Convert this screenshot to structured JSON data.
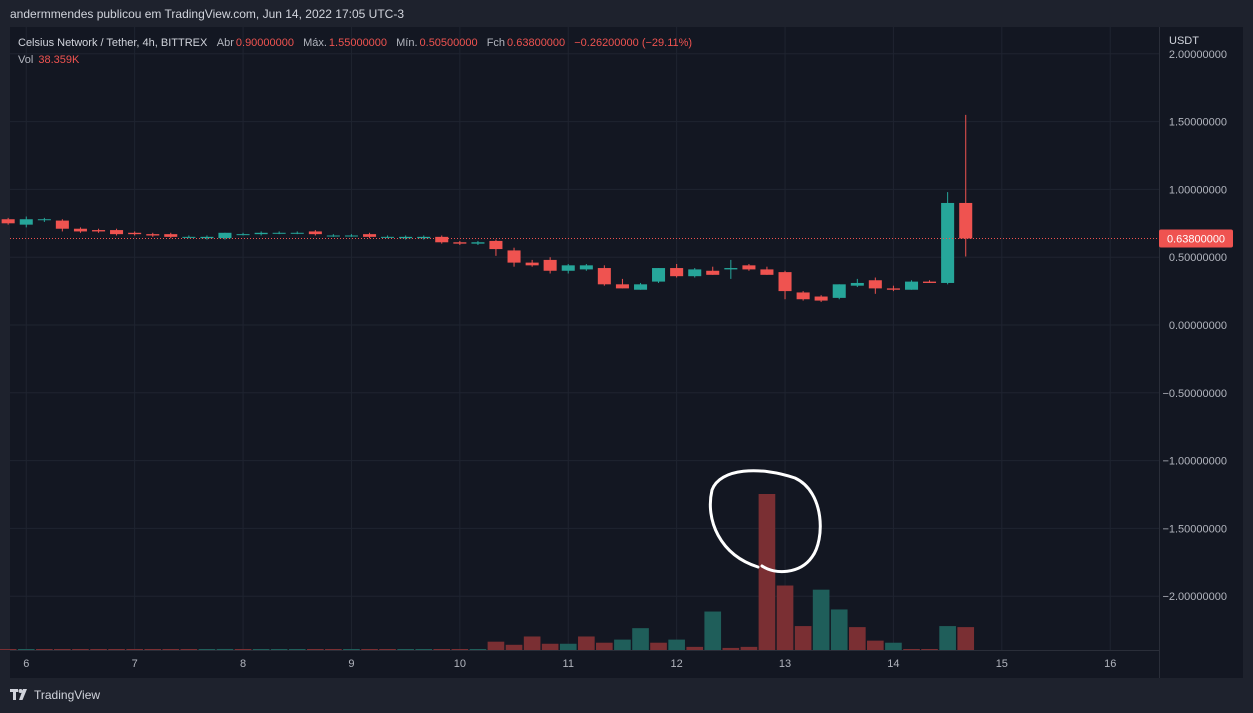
{
  "header": {
    "published_text": "andermmendes publicou em TradingView.com, Jun 14, 2022 17:05 UTC-3"
  },
  "legend": {
    "symbol": "Celsius Network / Tether, 4h, BITTREX",
    "open_label": "Abr",
    "open_value": "0.90000000",
    "high_label": "Máx.",
    "high_value": "1.55000000",
    "low_label": "Mín.",
    "low_value": "0.50500000",
    "close_label": "Fch",
    "close_value": "0.63800000",
    "change_value": "−0.26200000 (−29.11%)",
    "volume_label": "Vol",
    "volume_value": "38.359K"
  },
  "footer": {
    "brand": "TradingView"
  },
  "colors": {
    "background": "#131722",
    "up": "#26a69a",
    "down": "#ef5350",
    "volume_up": "#1f5e5a",
    "volume_down": "#7a2f33",
    "grid": "#1f2430",
    "annotation": "#ffffff"
  },
  "chart_data": {
    "type": "candlestick",
    "currency_label": "USDT",
    "y_tick_labels": [
      "2.00000000",
      "1.50000000",
      "1.00000000",
      "0.50000000",
      "0.00000000",
      "−0.50000000",
      "−1.00000000",
      "−1.50000000",
      "−2.00000000"
    ],
    "ylim": [
      -2.4,
      2.05
    ],
    "x_tick_labels": [
      "6",
      "7",
      "8",
      "9",
      "10",
      "11",
      "12",
      "13",
      "14",
      "15",
      "16"
    ],
    "xlim": [
      5.85,
      16.45
    ],
    "last_price": 0.638,
    "last_price_label": "0.63800000",
    "grid": true,
    "volume_max": 150,
    "candles": [
      {
        "t": 5.833,
        "o": 0.78,
        "h": 0.79,
        "l": 0.74,
        "c": 0.75
      },
      {
        "t": 6.0,
        "o": 0.74,
        "h": 0.8,
        "l": 0.72,
        "c": 0.78
      },
      {
        "t": 6.167,
        "o": 0.78,
        "h": 0.79,
        "l": 0.76,
        "c": 0.78
      },
      {
        "t": 6.333,
        "o": 0.77,
        "h": 0.78,
        "l": 0.69,
        "c": 0.71
      },
      {
        "t": 6.5,
        "o": 0.71,
        "h": 0.72,
        "l": 0.68,
        "c": 0.69
      },
      {
        "t": 6.667,
        "o": 0.7,
        "h": 0.71,
        "l": 0.68,
        "c": 0.69
      },
      {
        "t": 6.833,
        "o": 0.7,
        "h": 0.71,
        "l": 0.66,
        "c": 0.67
      },
      {
        "t": 7.0,
        "o": 0.68,
        "h": 0.69,
        "l": 0.66,
        "c": 0.67
      },
      {
        "t": 7.167,
        "o": 0.67,
        "h": 0.68,
        "l": 0.65,
        "c": 0.66
      },
      {
        "t": 7.333,
        "o": 0.67,
        "h": 0.68,
        "l": 0.64,
        "c": 0.65
      },
      {
        "t": 7.5,
        "o": 0.65,
        "h": 0.66,
        "l": 0.64,
        "c": 0.65
      },
      {
        "t": 7.667,
        "o": 0.64,
        "h": 0.66,
        "l": 0.63,
        "c": 0.65
      },
      {
        "t": 7.833,
        "o": 0.64,
        "h": 0.68,
        "l": 0.63,
        "c": 0.68
      },
      {
        "t": 8.0,
        "o": 0.67,
        "h": 0.68,
        "l": 0.66,
        "c": 0.67
      },
      {
        "t": 8.167,
        "o": 0.67,
        "h": 0.69,
        "l": 0.66,
        "c": 0.68
      },
      {
        "t": 8.333,
        "o": 0.68,
        "h": 0.69,
        "l": 0.67,
        "c": 0.68
      },
      {
        "t": 8.5,
        "o": 0.68,
        "h": 0.69,
        "l": 0.67,
        "c": 0.68
      },
      {
        "t": 8.667,
        "o": 0.69,
        "h": 0.7,
        "l": 0.66,
        "c": 0.67
      },
      {
        "t": 8.833,
        "o": 0.66,
        "h": 0.67,
        "l": 0.65,
        "c": 0.66
      },
      {
        "t": 9.0,
        "o": 0.66,
        "h": 0.67,
        "l": 0.65,
        "c": 0.66
      },
      {
        "t": 9.167,
        "o": 0.67,
        "h": 0.68,
        "l": 0.64,
        "c": 0.65
      },
      {
        "t": 9.333,
        "o": 0.65,
        "h": 0.66,
        "l": 0.64,
        "c": 0.65
      },
      {
        "t": 9.5,
        "o": 0.64,
        "h": 0.66,
        "l": 0.63,
        "c": 0.65
      },
      {
        "t": 9.667,
        "o": 0.64,
        "h": 0.66,
        "l": 0.63,
        "c": 0.65
      },
      {
        "t": 9.833,
        "o": 0.65,
        "h": 0.66,
        "l": 0.6,
        "c": 0.61
      },
      {
        "t": 10.0,
        "o": 0.61,
        "h": 0.62,
        "l": 0.59,
        "c": 0.6
      },
      {
        "t": 10.167,
        "o": 0.6,
        "h": 0.62,
        "l": 0.59,
        "c": 0.61
      },
      {
        "t": 10.333,
        "o": 0.62,
        "h": 0.63,
        "l": 0.51,
        "c": 0.56
      },
      {
        "t": 10.5,
        "o": 0.55,
        "h": 0.57,
        "l": 0.43,
        "c": 0.46
      },
      {
        "t": 10.667,
        "o": 0.46,
        "h": 0.48,
        "l": 0.43,
        "c": 0.44
      },
      {
        "t": 10.833,
        "o": 0.48,
        "h": 0.5,
        "l": 0.38,
        "c": 0.4
      },
      {
        "t": 11.0,
        "o": 0.4,
        "h": 0.45,
        "l": 0.38,
        "c": 0.44
      },
      {
        "t": 11.167,
        "o": 0.41,
        "h": 0.45,
        "l": 0.4,
        "c": 0.44
      },
      {
        "t": 11.333,
        "o": 0.42,
        "h": 0.44,
        "l": 0.29,
        "c": 0.3
      },
      {
        "t": 11.5,
        "o": 0.3,
        "h": 0.34,
        "l": 0.27,
        "c": 0.27
      },
      {
        "t": 11.667,
        "o": 0.26,
        "h": 0.31,
        "l": 0.26,
        "c": 0.3
      },
      {
        "t": 11.833,
        "o": 0.32,
        "h": 0.42,
        "l": 0.31,
        "c": 0.42
      },
      {
        "t": 12.0,
        "o": 0.42,
        "h": 0.45,
        "l": 0.35,
        "c": 0.36
      },
      {
        "t": 12.167,
        "o": 0.36,
        "h": 0.42,
        "l": 0.35,
        "c": 0.41
      },
      {
        "t": 12.333,
        "o": 0.4,
        "h": 0.43,
        "l": 0.37,
        "c": 0.37
      },
      {
        "t": 12.5,
        "o": 0.41,
        "h": 0.48,
        "l": 0.34,
        "c": 0.42
      },
      {
        "t": 12.667,
        "o": 0.44,
        "h": 0.45,
        "l": 0.4,
        "c": 0.41
      },
      {
        "t": 12.833,
        "o": 0.41,
        "h": 0.43,
        "l": 0.37,
        "c": 0.37
      },
      {
        "t": 13.0,
        "o": 0.39,
        "h": 0.4,
        "l": 0.19,
        "c": 0.25
      },
      {
        "t": 13.167,
        "o": 0.24,
        "h": 0.25,
        "l": 0.18,
        "c": 0.19
      },
      {
        "t": 13.333,
        "o": 0.21,
        "h": 0.22,
        "l": 0.17,
        "c": 0.18
      },
      {
        "t": 13.5,
        "o": 0.2,
        "h": 0.3,
        "l": 0.19,
        "c": 0.3
      },
      {
        "t": 13.667,
        "o": 0.29,
        "h": 0.34,
        "l": 0.28,
        "c": 0.31
      },
      {
        "t": 13.833,
        "o": 0.33,
        "h": 0.35,
        "l": 0.23,
        "c": 0.27
      },
      {
        "t": 14.0,
        "o": 0.27,
        "h": 0.29,
        "l": 0.25,
        "c": 0.26
      },
      {
        "t": 14.167,
        "o": 0.26,
        "h": 0.33,
        "l": 0.26,
        "c": 0.32
      },
      {
        "t": 14.333,
        "o": 0.32,
        "h": 0.33,
        "l": 0.31,
        "c": 0.31
      },
      {
        "t": 14.5,
        "o": 0.31,
        "h": 0.98,
        "l": 0.3,
        "c": 0.9
      },
      {
        "t": 14.667,
        "o": 0.9,
        "h": 1.55,
        "l": 0.505,
        "c": 0.638
      }
    ],
    "volumes": [
      {
        "t": 5.833,
        "v": 0.5,
        "dir": "down"
      },
      {
        "t": 6.0,
        "v": 0.5,
        "dir": "up"
      },
      {
        "t": 6.167,
        "v": 0.5,
        "dir": "down"
      },
      {
        "t": 6.333,
        "v": 0.5,
        "dir": "down"
      },
      {
        "t": 6.5,
        "v": 0.5,
        "dir": "down"
      },
      {
        "t": 6.667,
        "v": 0.5,
        "dir": "down"
      },
      {
        "t": 6.833,
        "v": 0.5,
        "dir": "down"
      },
      {
        "t": 7.0,
        "v": 0.5,
        "dir": "down"
      },
      {
        "t": 7.167,
        "v": 0.5,
        "dir": "down"
      },
      {
        "t": 7.333,
        "v": 0.5,
        "dir": "down"
      },
      {
        "t": 7.5,
        "v": 0.5,
        "dir": "down"
      },
      {
        "t": 7.667,
        "v": 0.5,
        "dir": "up"
      },
      {
        "t": 7.833,
        "v": 1,
        "dir": "up"
      },
      {
        "t": 8.0,
        "v": 0.5,
        "dir": "down"
      },
      {
        "t": 8.167,
        "v": 0.5,
        "dir": "up"
      },
      {
        "t": 8.333,
        "v": 0.5,
        "dir": "up"
      },
      {
        "t": 8.5,
        "v": 0.5,
        "dir": "up"
      },
      {
        "t": 8.667,
        "v": 0.5,
        "dir": "down"
      },
      {
        "t": 8.833,
        "v": 0.5,
        "dir": "down"
      },
      {
        "t": 9.0,
        "v": 0.5,
        "dir": "up"
      },
      {
        "t": 9.167,
        "v": 0.5,
        "dir": "down"
      },
      {
        "t": 9.333,
        "v": 0.5,
        "dir": "down"
      },
      {
        "t": 9.5,
        "v": 0.5,
        "dir": "up"
      },
      {
        "t": 9.667,
        "v": 0.5,
        "dir": "up"
      },
      {
        "t": 9.833,
        "v": 0.5,
        "dir": "down"
      },
      {
        "t": 10.0,
        "v": 0.5,
        "dir": "down"
      },
      {
        "t": 10.167,
        "v": 0.5,
        "dir": "up"
      },
      {
        "t": 10.333,
        "v": 8,
        "dir": "down"
      },
      {
        "t": 10.5,
        "v": 5,
        "dir": "down"
      },
      {
        "t": 10.667,
        "v": 13,
        "dir": "down"
      },
      {
        "t": 10.833,
        "v": 6,
        "dir": "down"
      },
      {
        "t": 11.0,
        "v": 6,
        "dir": "up"
      },
      {
        "t": 11.167,
        "v": 13,
        "dir": "down"
      },
      {
        "t": 11.333,
        "v": 7,
        "dir": "down"
      },
      {
        "t": 11.5,
        "v": 10,
        "dir": "up"
      },
      {
        "t": 11.667,
        "v": 21,
        "dir": "up"
      },
      {
        "t": 11.833,
        "v": 7,
        "dir": "down"
      },
      {
        "t": 12.0,
        "v": 10,
        "dir": "up"
      },
      {
        "t": 12.167,
        "v": 3,
        "dir": "down"
      },
      {
        "t": 12.333,
        "v": 37,
        "dir": "up"
      },
      {
        "t": 12.5,
        "v": 2,
        "dir": "down"
      },
      {
        "t": 12.667,
        "v": 3,
        "dir": "down"
      },
      {
        "t": 12.833,
        "v": 150,
        "dir": "down"
      },
      {
        "t": 13.0,
        "v": 62,
        "dir": "down"
      },
      {
        "t": 13.167,
        "v": 23,
        "dir": "down"
      },
      {
        "t": 13.333,
        "v": 58,
        "dir": "up"
      },
      {
        "t": 13.5,
        "v": 39,
        "dir": "up"
      },
      {
        "t": 13.667,
        "v": 22,
        "dir": "down"
      },
      {
        "t": 13.833,
        "v": 9,
        "dir": "down"
      },
      {
        "t": 14.0,
        "v": 7,
        "dir": "up"
      },
      {
        "t": 14.167,
        "v": 0.5,
        "dir": "down"
      },
      {
        "t": 14.333,
        "v": 0.5,
        "dir": "down"
      },
      {
        "t": 14.5,
        "v": 23,
        "dir": "up"
      },
      {
        "t": 14.667,
        "v": 22,
        "dir": "down"
      }
    ]
  }
}
